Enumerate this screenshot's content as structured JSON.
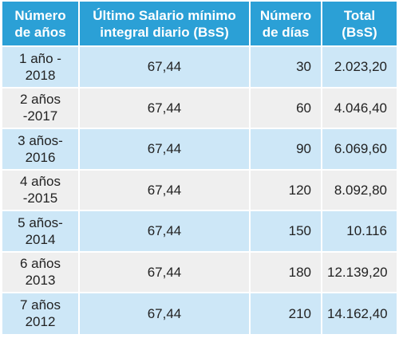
{
  "table": {
    "headers": {
      "years": "Número\nde años",
      "salary": "Último Salario mínimo\nintegral diario (BsS)",
      "days": "Número\nde días",
      "total": "Total\n(BsS)"
    },
    "rows": [
      {
        "years": "1 año  -\n2018",
        "salary": "67,44",
        "days": "30",
        "total": "2.023,20"
      },
      {
        "years": "2 años\n-2017",
        "salary": "67,44",
        "days": "60",
        "total": "4.046,40"
      },
      {
        "years": "3 años-\n2016",
        "salary": "67,44",
        "days": "90",
        "total": "6.069,60"
      },
      {
        "years": "4 años\n-2015",
        "salary": "67,44",
        "days": "120",
        "total": "8.092,80"
      },
      {
        "years": "5 años-\n2014",
        "salary": "67,44",
        "days": "150",
        "total": "10.116"
      },
      {
        "years": "6 años\n2013",
        "salary": "67,44",
        "days": "180",
        "total": "12.139,20"
      },
      {
        "years": "7 años\n2012",
        "salary": "67,44",
        "days": "210",
        "total": "14.162,40"
      }
    ]
  },
  "colors": {
    "header_bg": "#2ba0d6",
    "row_blue": "#cde7f7",
    "row_gray": "#efefef"
  }
}
